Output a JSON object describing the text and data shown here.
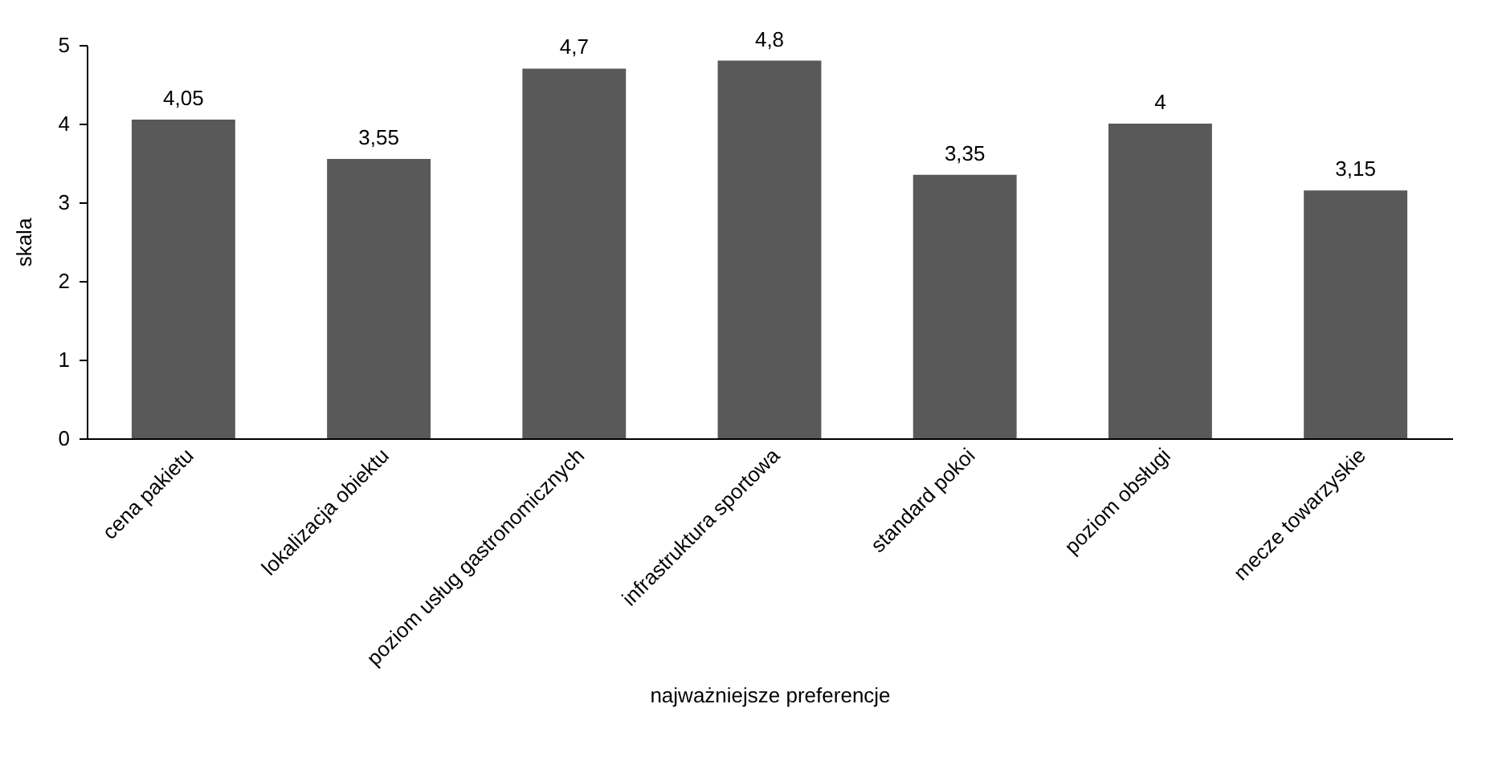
{
  "chart_data": {
    "type": "bar",
    "xlabel": "najważniejsze  preferencje",
    "ylabel": "skala",
    "categories": [
      "cena pakietu",
      "lokalizacja obiektu",
      "poziom usług gastronomicznych",
      "infrastruktura sportowa",
      "standard pokoi",
      "poziom obsługi",
      "mecze towarzyskie"
    ],
    "values": [
      4.05,
      3.55,
      4.7,
      4.8,
      3.35,
      4,
      3.15
    ],
    "value_labels": [
      "4,05",
      "3,55",
      "4,7",
      "4,8",
      "3,35",
      "4",
      "3,15"
    ],
    "color": "#595959",
    "ylim": [
      0,
      5
    ],
    "yticks": [
      0,
      1,
      2,
      3,
      4,
      5
    ],
    "grid": false
  }
}
